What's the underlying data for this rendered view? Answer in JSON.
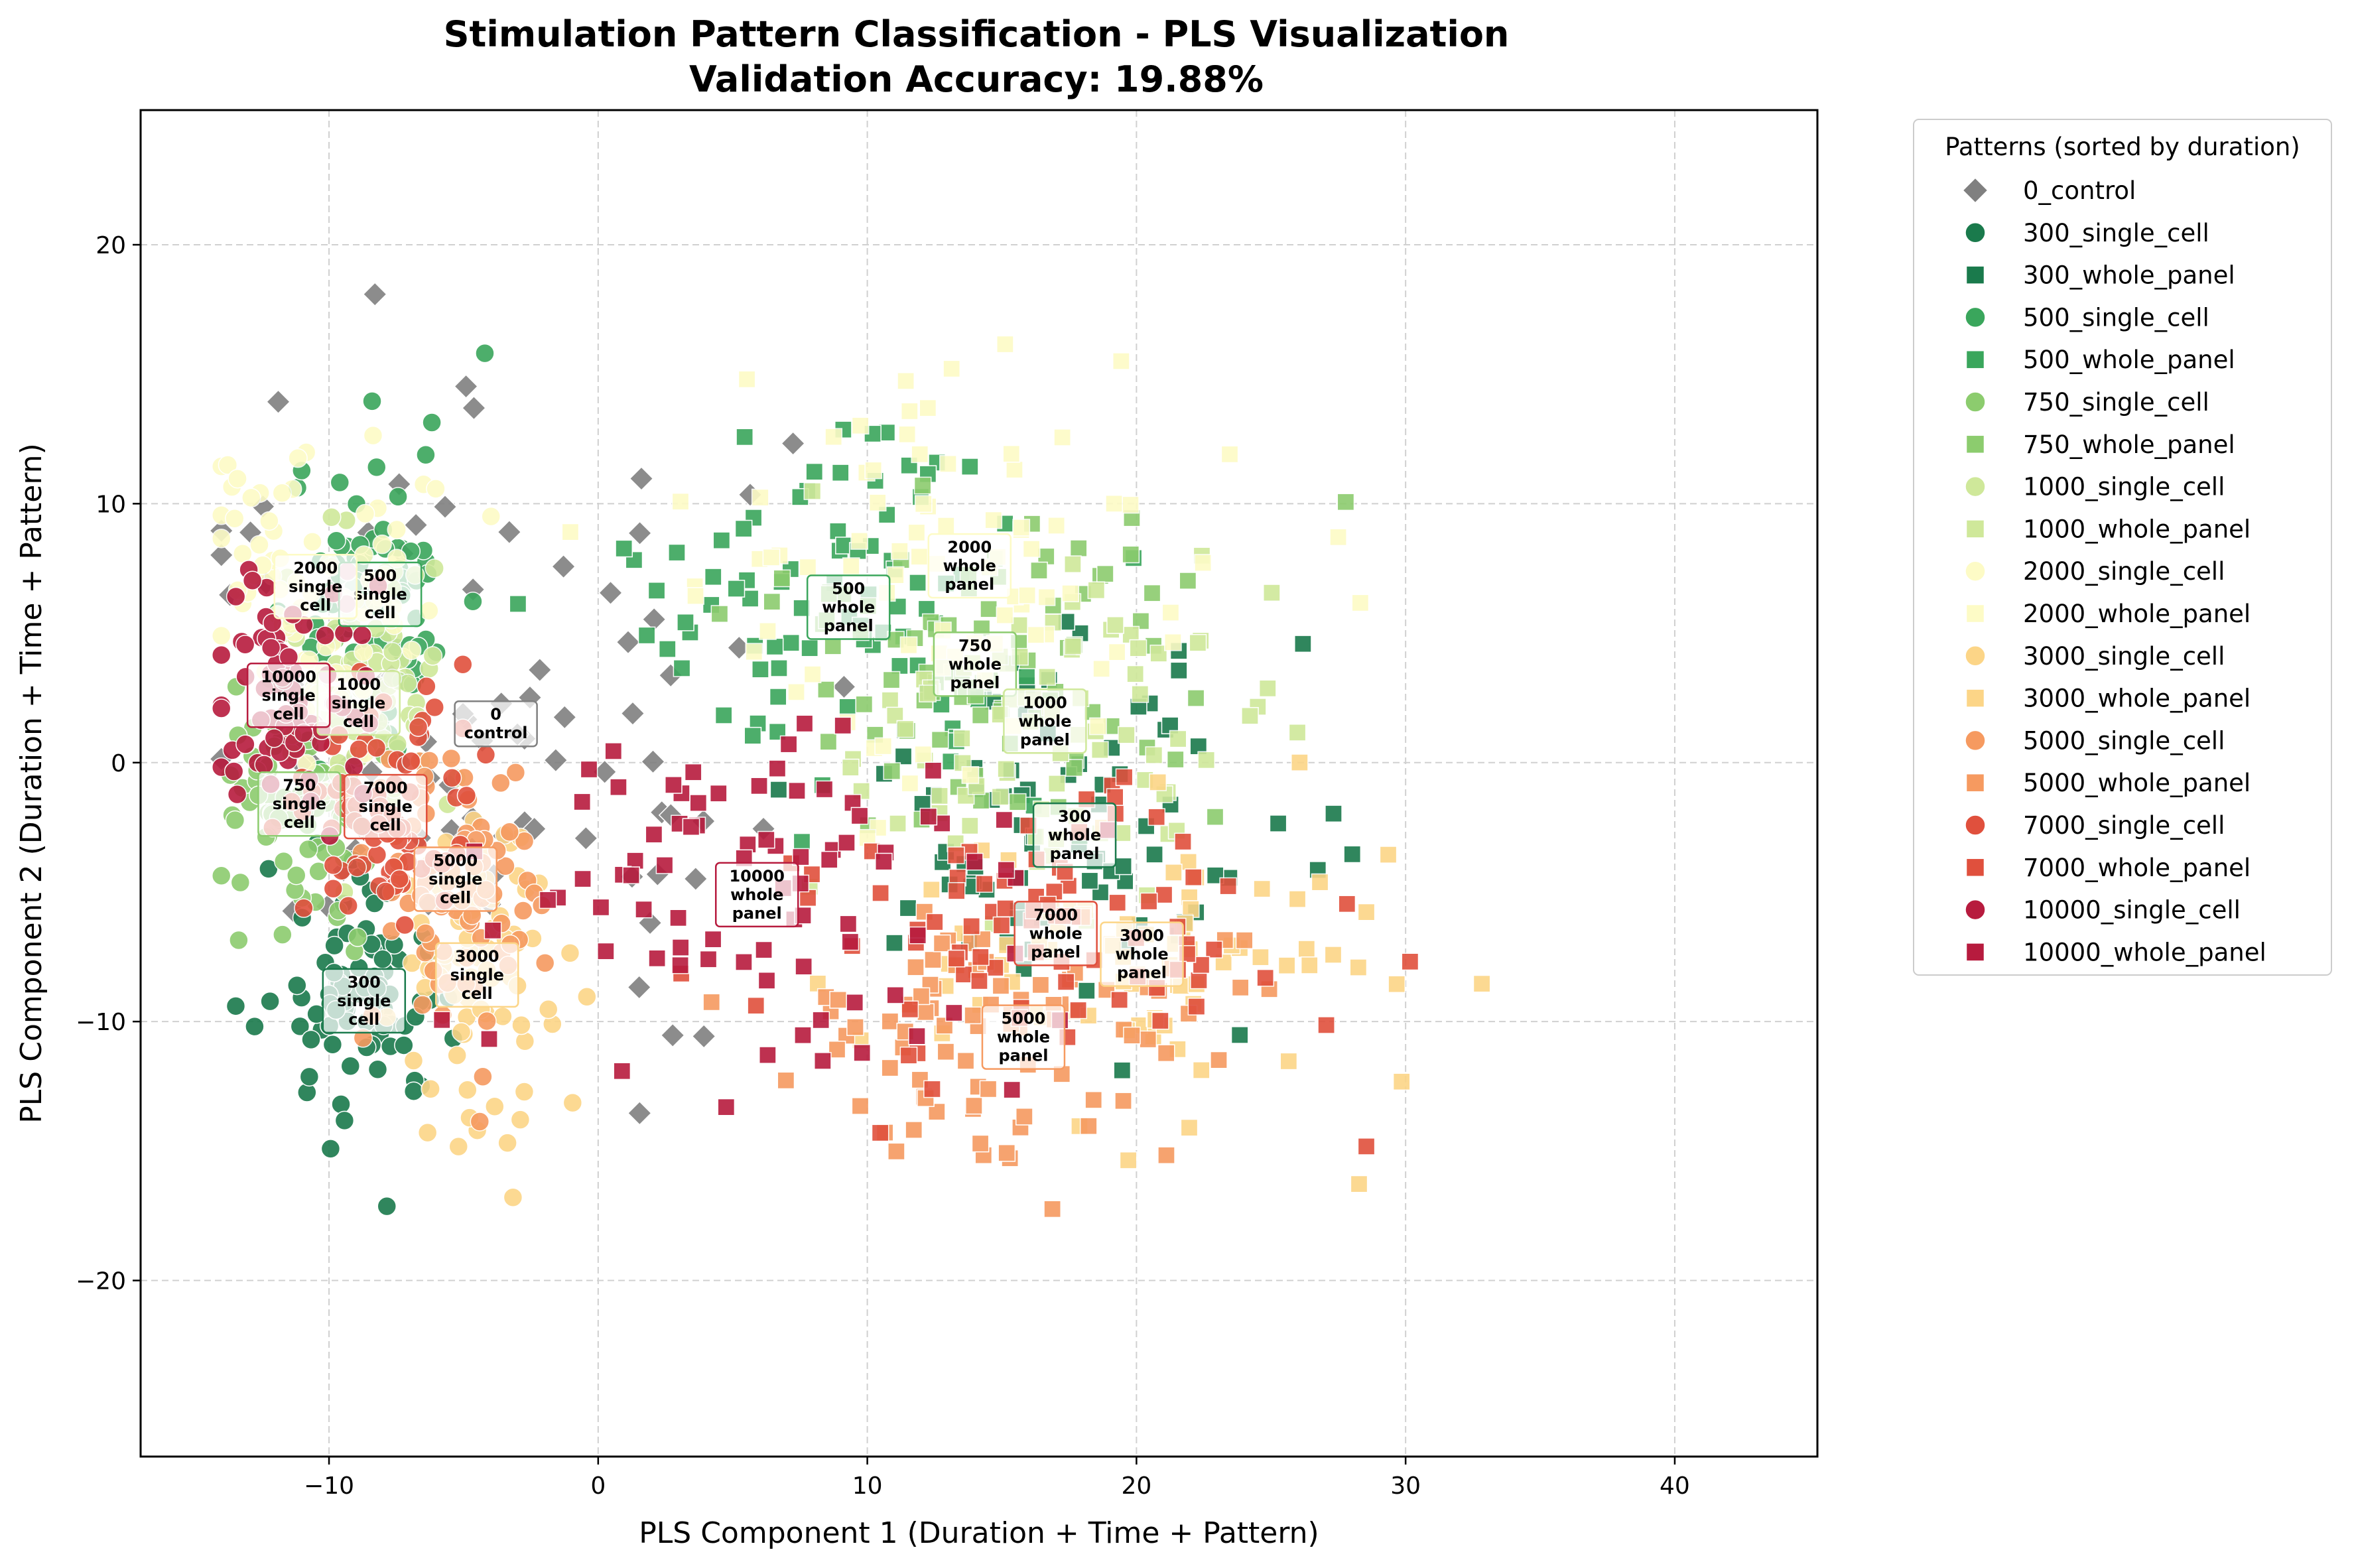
{
  "chart_data": {
    "type": "scatter",
    "title_line1": "Stimulation Pattern Classification - PLS Visualization",
    "title_line2": "Validation Accuracy: 19.88%",
    "xlabel": "PLS Component 1 (Duration + Time + Pattern)",
    "ylabel": "PLS Component 2 (Duration + Time + Pattern)",
    "xlim": [
      -17,
      45.3
    ],
    "ylim": [
      -26.8,
      25.2
    ],
    "xticks": [
      -10,
      0,
      10,
      20,
      30,
      40
    ],
    "yticks": [
      -20,
      -10,
      0,
      10,
      20
    ],
    "xtick_labels": [
      "−10",
      "0",
      "10",
      "20",
      "30",
      "40"
    ],
    "ytick_labels": [
      "−20",
      "−10",
      "0",
      "10",
      "20"
    ],
    "grid": true,
    "legend_title": "Patterns (sorted by duration)",
    "legend_placement": "outside upper right",
    "series": [
      {
        "name": "0_control",
        "marker": "diamond",
        "color": "#808080",
        "centroid": [
          -3.8,
          1.5
        ],
        "centroid_label": [
          "0",
          "control"
        ],
        "spread": [
          11,
          11
        ]
      },
      {
        "name": "300_single_cell",
        "marker": "circle",
        "color": "#1a7a4c",
        "centroid": [
          -8.7,
          -9.2
        ],
        "centroid_label": [
          "300",
          "single",
          "cell"
        ],
        "spread": [
          2.5,
          4
        ]
      },
      {
        "name": "300_whole_panel",
        "marker": "square",
        "color": "#1a7a4c",
        "centroid": [
          17.7,
          -2.8
        ],
        "centroid_label": [
          "300",
          "whole",
          "panel"
        ],
        "spread": [
          8,
          7
        ]
      },
      {
        "name": "500_single_cell",
        "marker": "circle",
        "color": "#3aa65c",
        "centroid": [
          -8.1,
          6.5
        ],
        "centroid_label": [
          "500",
          "single",
          "cell"
        ],
        "spread": [
          3,
          5
        ]
      },
      {
        "name": "500_whole_panel",
        "marker": "square",
        "color": "#3aa65c",
        "centroid": [
          9.3,
          6.0
        ],
        "centroid_label": [
          "500",
          "whole",
          "panel"
        ],
        "spread": [
          8,
          7
        ]
      },
      {
        "name": "750_single_cell",
        "marker": "circle",
        "color": "#8ccc6e",
        "centroid": [
          -11.1,
          -1.6
        ],
        "centroid_label": [
          "750",
          "single",
          "cell"
        ],
        "spread": [
          2.5,
          4
        ]
      },
      {
        "name": "750_whole_panel",
        "marker": "square",
        "color": "#8ccc6e",
        "centroid": [
          14.0,
          3.8
        ],
        "centroid_label": [
          "750",
          "whole",
          "panel"
        ],
        "spread": [
          8,
          6
        ]
      },
      {
        "name": "1000_single_cell",
        "marker": "circle",
        "color": "#cfe89a",
        "centroid": [
          -8.9,
          2.3
        ],
        "centroid_label": [
          "1000",
          "single",
          "cell"
        ],
        "spread": [
          3,
          5
        ]
      },
      {
        "name": "1000_whole_panel",
        "marker": "square",
        "color": "#cfe89a",
        "centroid": [
          16.6,
          1.6
        ],
        "centroid_label": [
          "1000",
          "whole",
          "panel"
        ],
        "spread": [
          8,
          6
        ]
      },
      {
        "name": "2000_single_cell",
        "marker": "circle",
        "color": "#fdfbc6",
        "centroid": [
          -10.5,
          6.8
        ],
        "centroid_label": [
          "2000",
          "single",
          "cell"
        ],
        "spread": [
          4,
          6
        ]
      },
      {
        "name": "2000_whole_panel",
        "marker": "square",
        "color": "#fdfbc6",
        "centroid": [
          13.8,
          7.6
        ],
        "centroid_label": [
          "2000",
          "whole",
          "panel"
        ],
        "spread": [
          9,
          7
        ]
      },
      {
        "name": "3000_single_cell",
        "marker": "circle",
        "color": "#fcd587",
        "centroid": [
          -4.5,
          -8.2
        ],
        "centroid_label": [
          "3000",
          "single",
          "cell"
        ],
        "spread": [
          3,
          5
        ]
      },
      {
        "name": "3000_whole_panel",
        "marker": "square",
        "color": "#fcd587",
        "centroid": [
          20.2,
          -7.4
        ],
        "centroid_label": [
          "3000",
          "whole",
          "panel"
        ],
        "spread": [
          8,
          5
        ]
      },
      {
        "name": "5000_single_cell",
        "marker": "circle",
        "color": "#f69a60",
        "centroid": [
          -5.3,
          -4.5
        ],
        "centroid_label": [
          "5000",
          "single",
          "cell"
        ],
        "spread": [
          3,
          5
        ]
      },
      {
        "name": "5000_whole_panel",
        "marker": "square",
        "color": "#f69a60",
        "centroid": [
          15.8,
          -10.6
        ],
        "centroid_label": [
          "5000",
          "whole",
          "panel"
        ],
        "spread": [
          9,
          5
        ]
      },
      {
        "name": "7000_single_cell",
        "marker": "circle",
        "color": "#e0503d",
        "centroid": [
          -7.9,
          -1.7
        ],
        "centroid_label": [
          "7000",
          "single",
          "cell"
        ],
        "spread": [
          2.5,
          4
        ]
      },
      {
        "name": "7000_whole_panel",
        "marker": "square",
        "color": "#e0503d",
        "centroid": [
          17.0,
          -6.6
        ],
        "centroid_label": [
          "7000",
          "whole",
          "panel"
        ],
        "spread": [
          9,
          5
        ]
      },
      {
        "name": "10000_single_cell",
        "marker": "circle",
        "color": "#b71b3e",
        "centroid": [
          -11.5,
          2.6
        ],
        "centroid_label": [
          "10000",
          "single",
          "cell"
        ],
        "spread": [
          2.5,
          4
        ]
      },
      {
        "name": "10000_whole_panel",
        "marker": "square",
        "color": "#b71b3e",
        "centroid": [
          5.9,
          -5.1
        ],
        "centroid_label": [
          "10000",
          "whole",
          "panel"
        ],
        "spread": [
          10,
          7
        ]
      }
    ]
  }
}
